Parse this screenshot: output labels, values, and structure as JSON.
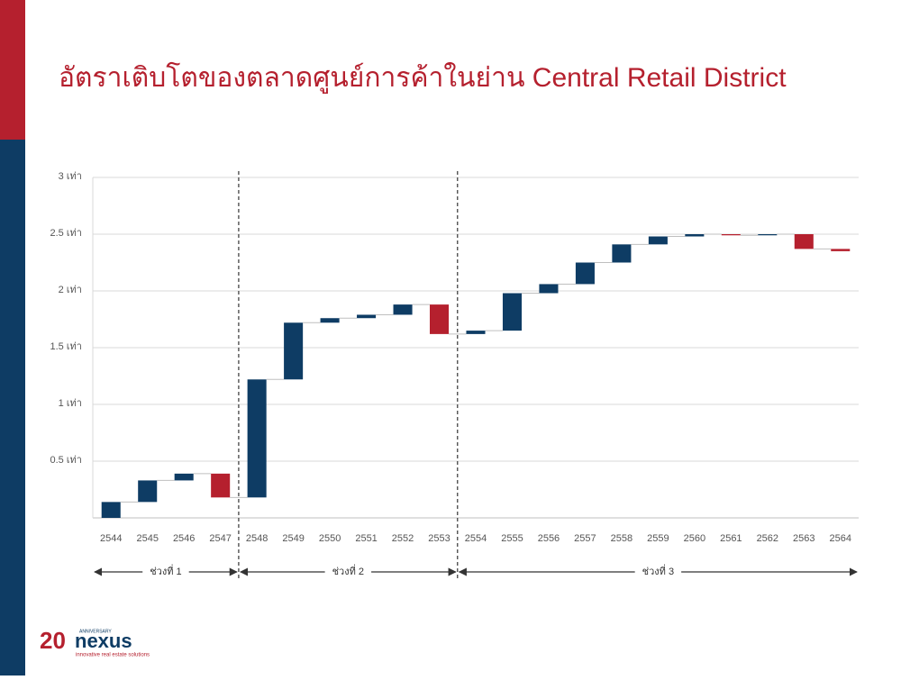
{
  "chart_data": {
    "type": "waterfall",
    "title": "อัตราเติบโตของตลาดศูนย์การค้าในย่าน Central Retail District",
    "categories": [
      "2544",
      "2545",
      "2546",
      "2547",
      "2548",
      "2549",
      "2550",
      "2551",
      "2552",
      "2553",
      "2554",
      "2555",
      "2556",
      "2557",
      "2558",
      "2559",
      "2560",
      "2561",
      "2562",
      "2563",
      "2564"
    ],
    "values": [
      0.14,
      0.19,
      0.06,
      -0.21,
      1.04,
      0.5,
      0.04,
      0.03,
      0.09,
      -0.26,
      0.03,
      0.33,
      0.08,
      0.19,
      0.16,
      0.07,
      0.02,
      -0.01,
      0.01,
      -0.13,
      -0.02
    ],
    "increase_color": "#0e3c64",
    "decrease_color": "#b5202e",
    "ylim": [
      0,
      3
    ],
    "yticks": [
      {
        "value": 0.5,
        "label": "0.5 เท่า"
      },
      {
        "value": 1,
        "label": "1 เท่า"
      },
      {
        "value": 1.5,
        "label": "1.5 เท่า"
      },
      {
        "value": 2,
        "label": "2 เท่า"
      },
      {
        "value": 2.5,
        "label": "2.5 เท่า"
      },
      {
        "value": 3,
        "label": "3 เท่า"
      }
    ],
    "grid": true,
    "periods": [
      {
        "label": "ช่วงที่ 1",
        "from": "2544",
        "to": "2547"
      },
      {
        "label": "ช่วงที่ 2",
        "from": "2548",
        "to": "2553"
      },
      {
        "label": "ช่วงที่ 3",
        "from": "2554",
        "to": "2564"
      }
    ]
  },
  "logo": {
    "number": "20",
    "badge": "ANNIVERSARY",
    "name": "nexus",
    "tagline": "innovative real estate solutions"
  }
}
